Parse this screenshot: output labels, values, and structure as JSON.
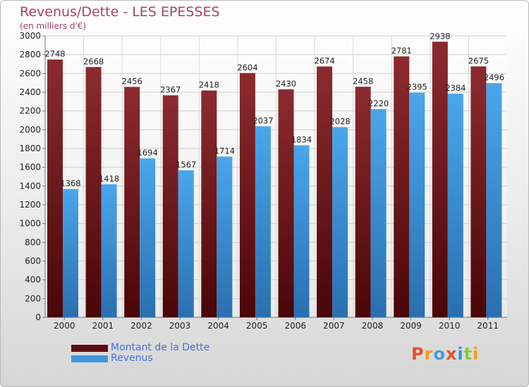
{
  "header": {
    "title": "Revenus/Dette - LES EPESSES",
    "subtitle": "(en milliers d'€)"
  },
  "logo": {
    "text": "Proxiti",
    "letters": [
      {
        "ch": "P",
        "color": "#e5512b"
      },
      {
        "ch": "r",
        "color": "#f39c1e"
      },
      {
        "ch": "o",
        "color": "#3aa0d8"
      },
      {
        "ch": "x",
        "color": "#e5512b"
      },
      {
        "ch": "i",
        "color": "#2e9ad0"
      },
      {
        "ch": "t",
        "color": "#8dc63f"
      },
      {
        "ch": "i",
        "color": "#f39c1e"
      }
    ]
  },
  "chart_data": {
    "type": "bar",
    "title": "Revenus/Dette - LES EPESSES",
    "subtitle": "(en milliers d'€)",
    "categories": [
      "2000",
      "2001",
      "2002",
      "2003",
      "2004",
      "2005",
      "2006",
      "2007",
      "2008",
      "2009",
      "2010",
      "2011"
    ],
    "series": [
      {
        "name": "Montant de la Dette",
        "color": "#7a1a1f",
        "values": [
          2748,
          2668,
          2456,
          2367,
          2418,
          2604,
          2430,
          2674,
          2458,
          2781,
          2938,
          2675
        ]
      },
      {
        "name": "Revenus",
        "color": "#3f97dd",
        "values": [
          1368,
          1418,
          1694,
          1567,
          1714,
          2037,
          1834,
          2028,
          2220,
          2395,
          2384,
          2496
        ]
      }
    ],
    "ylim": [
      0,
      3000
    ],
    "yticks": [
      0,
      200,
      400,
      600,
      800,
      1000,
      1200,
      1400,
      1600,
      1800,
      2000,
      2200,
      2400,
      2600,
      2800,
      3000
    ],
    "grid": true,
    "legend": "bottom-left"
  }
}
